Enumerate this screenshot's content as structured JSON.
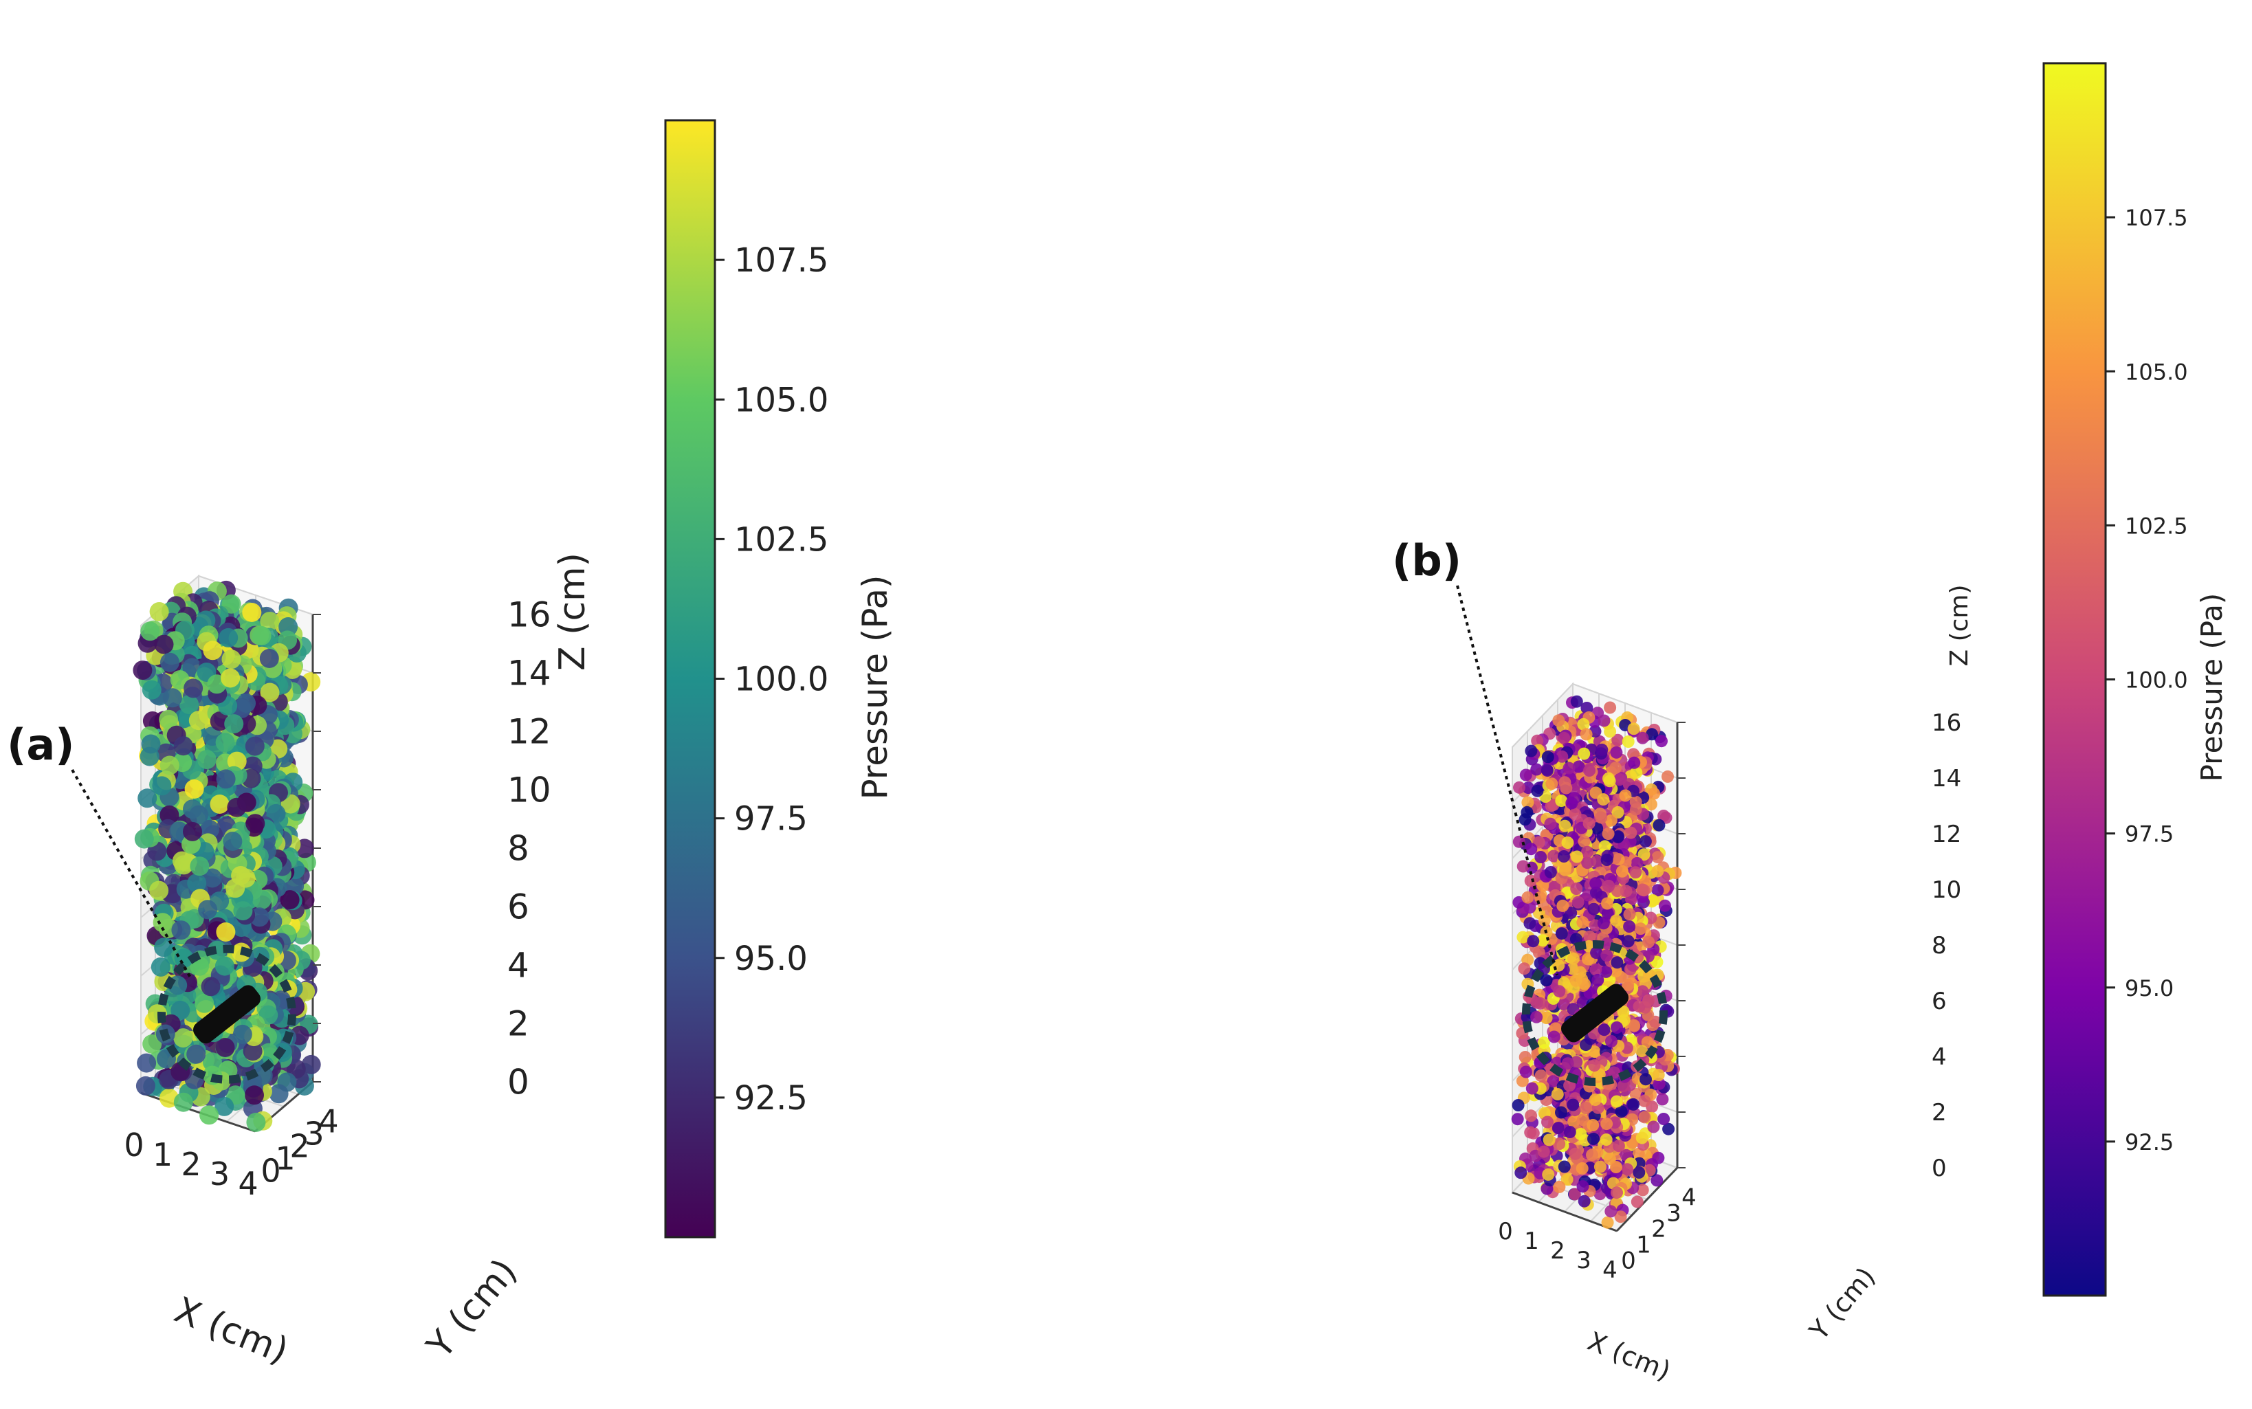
{
  "figure": {
    "panels": [
      {
        "label": "(a)",
        "colormap": "viridis",
        "colormap_stops": [
          "#440154",
          "#3b528b",
          "#21918c",
          "#5ec962",
          "#fde725"
        ],
        "marker_size": "large"
      },
      {
        "label": "(b)",
        "colormap": "plasma",
        "colormap_stops": [
          "#0d0887",
          "#7e03a8",
          "#cc4778",
          "#f89540",
          "#f0f921"
        ],
        "marker_size": "small"
      }
    ]
  },
  "chart_data": [
    {
      "type": "scatter",
      "panel": "(a)",
      "projection": "3d",
      "title": "",
      "xlabel": "X (cm)",
      "ylabel": "Y (cm)",
      "zlabel": "Z (cm)",
      "xlim": [
        0,
        4
      ],
      "ylim": [
        0,
        4
      ],
      "zlim": [
        0,
        16
      ],
      "x_ticks": [
        "0",
        "1",
        "2",
        "3",
        "4"
      ],
      "y_ticks": [
        "0",
        "1",
        "2",
        "3",
        "4"
      ],
      "z_ticks": [
        "0",
        "2",
        "4",
        "6",
        "8",
        "10",
        "12",
        "14",
        "16"
      ],
      "grid": true,
      "point_count_approx": 2000,
      "point_distribution": "uniform random across X 0–4, Y 0–4, Z 0–16",
      "source_marker": {
        "x": 2.0,
        "y": 2.0,
        "z": 2.5,
        "annotation": "(a)",
        "highlighted_by": "dashed circle"
      },
      "colorbar": {
        "label": "Pressure (Pa)",
        "range": [
          90,
          110
        ],
        "ticks": [
          "92.5",
          "95.0",
          "97.5",
          "100.0",
          "102.5",
          "105.0",
          "107.5"
        ],
        "tick_values": [
          92.5,
          95.0,
          97.5,
          100.0,
          102.5,
          105.0,
          107.5
        ]
      }
    },
    {
      "type": "scatter",
      "panel": "(b)",
      "projection": "3d",
      "title": "",
      "xlabel": "X (cm)",
      "ylabel": "Y (cm)",
      "zlabel": "Z (cm)",
      "xlim": [
        0,
        4
      ],
      "ylim": [
        0,
        4
      ],
      "zlim": [
        0,
        16
      ],
      "x_ticks": [
        "0",
        "1",
        "2",
        "3",
        "4"
      ],
      "y_ticks": [
        "0",
        "1",
        "2",
        "3",
        "4"
      ],
      "z_ticks": [
        "0",
        "2",
        "4",
        "6",
        "8",
        "10",
        "12",
        "14",
        "16"
      ],
      "grid": true,
      "point_count_approx": 2000,
      "point_distribution": "uniform random across X 0–4, Y 0–4, Z 0–16",
      "source_marker": {
        "x": 2.0,
        "y": 2.0,
        "z": 6.0,
        "annotation": "(b)",
        "highlighted_by": "dashed circle"
      },
      "colorbar": {
        "label": "Pressure (Pa)",
        "range": [
          90,
          110
        ],
        "ticks": [
          "92.5",
          "95.0",
          "97.5",
          "100.0",
          "102.5",
          "105.0",
          "107.5"
        ],
        "tick_values": [
          92.5,
          95.0,
          97.5,
          100.0,
          102.5,
          105.0,
          107.5
        ]
      }
    }
  ]
}
